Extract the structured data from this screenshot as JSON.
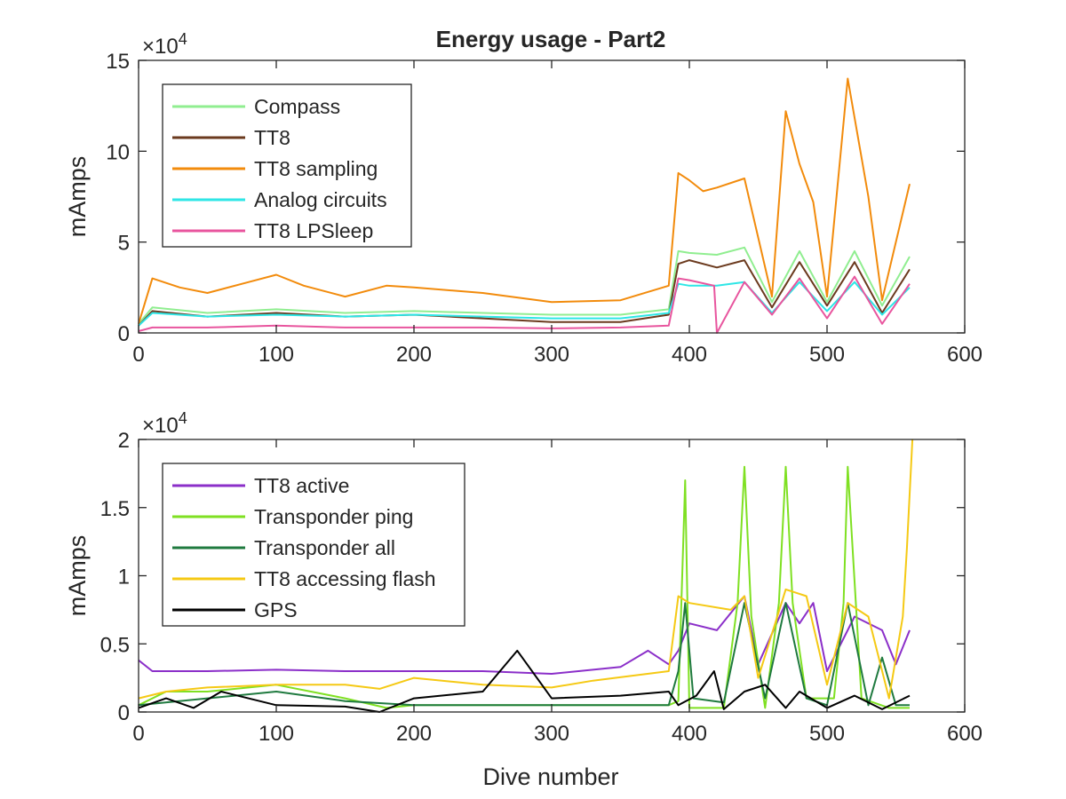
{
  "figure_title": "Energy usage - Part2",
  "xlabel": "Dive number",
  "chart_data": [
    {
      "type": "line",
      "title": "Energy usage - Part2",
      "xlabel": "",
      "ylabel": "mAmps",
      "xlim": [
        0,
        600
      ],
      "ylim": [
        0,
        150000
      ],
      "x_ticks": [
        0,
        100,
        200,
        300,
        400,
        500,
        600
      ],
      "x_tick_labels": [
        "0",
        "100",
        "200",
        "300",
        "400",
        "500",
        "600"
      ],
      "y_ticks": [
        0,
        50000,
        100000,
        150000
      ],
      "y_tick_labels": [
        "0",
        "5",
        "10",
        "15"
      ],
      "y_exponent": "×10",
      "y_exponent_power": "4",
      "grid": false,
      "legend_position": "top-left",
      "series": [
        {
          "name": "Compass",
          "color": "#90EE90",
          "x": [
            0,
            10,
            50,
            100,
            150,
            200,
            250,
            300,
            350,
            385,
            392,
            400,
            420,
            440,
            460,
            480,
            500,
            520,
            540,
            560
          ],
          "y": [
            5000,
            14000,
            11000,
            13000,
            11000,
            12000,
            11000,
            10000,
            10000,
            13000,
            45000,
            44000,
            43000,
            47000,
            17000,
            45000,
            17000,
            45000,
            15000,
            42000
          ]
        },
        {
          "name": "TT8",
          "color": "#6B3A1E",
          "x": [
            0,
            10,
            50,
            100,
            150,
            200,
            250,
            300,
            350,
            385,
            392,
            400,
            420,
            440,
            460,
            480,
            500,
            520,
            540,
            560
          ],
          "y": [
            4000,
            12000,
            9000,
            11000,
            9000,
            10000,
            8000,
            6000,
            6000,
            10000,
            38000,
            40000,
            36000,
            40000,
            14000,
            39000,
            15000,
            39000,
            11000,
            35000
          ]
        },
        {
          "name": "TT8 sampling",
          "color": "#F28B0C",
          "x": [
            0,
            10,
            30,
            50,
            80,
            100,
            120,
            150,
            180,
            200,
            250,
            300,
            350,
            385,
            392,
            400,
            410,
            420,
            440,
            460,
            470,
            480,
            490,
            500,
            515,
            530,
            540,
            560
          ],
          "y": [
            5000,
            30000,
            25000,
            22000,
            28000,
            32000,
            26000,
            20000,
            26000,
            25000,
            22000,
            17000,
            18000,
            26000,
            88000,
            84000,
            78000,
            80000,
            85000,
            20000,
            122000,
            93000,
            72000,
            20000,
            140000,
            75000,
            18000,
            82000
          ]
        },
        {
          "name": "Analog circuits",
          "color": "#2EE6E6",
          "x": [
            0,
            10,
            50,
            100,
            150,
            200,
            250,
            300,
            350,
            385,
            392,
            400,
            420,
            440,
            460,
            480,
            500,
            520,
            540,
            560
          ],
          "y": [
            4000,
            11000,
            9000,
            10000,
            9000,
            10000,
            9000,
            8000,
            8000,
            11000,
            27000,
            26000,
            26000,
            28000,
            11000,
            28000,
            12000,
            28000,
            10000,
            25000
          ]
        },
        {
          "name": "TT8 LPSleep",
          "color": "#E8559E",
          "x": [
            0,
            10,
            50,
            100,
            150,
            200,
            250,
            300,
            350,
            385,
            392,
            400,
            418,
            420,
            440,
            460,
            480,
            500,
            520,
            540,
            560
          ],
          "y": [
            1000,
            3000,
            3000,
            4000,
            3000,
            3000,
            3000,
            2500,
            3000,
            4000,
            30000,
            29000,
            26000,
            0,
            28000,
            10000,
            30000,
            8000,
            31000,
            5000,
            27000
          ]
        }
      ]
    },
    {
      "type": "line",
      "title": "",
      "xlabel": "Dive number",
      "ylabel": "mAmps",
      "xlim": [
        0,
        600
      ],
      "ylim": [
        0,
        20000
      ],
      "x_ticks": [
        0,
        100,
        200,
        300,
        400,
        500,
        600
      ],
      "x_tick_labels": [
        "0",
        "100",
        "200",
        "300",
        "400",
        "500",
        "600"
      ],
      "y_ticks": [
        0,
        5000,
        10000,
        15000,
        20000
      ],
      "y_tick_labels": [
        "0",
        "0.5",
        "1",
        "1.5",
        "2"
      ],
      "y_exponent": "×10",
      "y_exponent_power": "4",
      "grid": false,
      "legend_position": "top-left",
      "series": [
        {
          "name": "TT8 active",
          "color": "#8B2FC9",
          "x": [
            0,
            10,
            50,
            100,
            150,
            200,
            250,
            300,
            350,
            370,
            385,
            392,
            400,
            420,
            440,
            450,
            470,
            480,
            490,
            500,
            520,
            540,
            550,
            560
          ],
          "y": [
            3800,
            3000,
            3000,
            3100,
            3000,
            3000,
            3000,
            2800,
            3300,
            4500,
            3500,
            4500,
            6500,
            6000,
            8500,
            3500,
            8000,
            6500,
            8000,
            3000,
            7000,
            6000,
            3500,
            6000
          ]
        },
        {
          "name": "Transponder ping",
          "color": "#7FE022",
          "x": [
            0,
            20,
            50,
            100,
            150,
            180,
            200,
            300,
            385,
            392,
            397,
            400,
            415,
            425,
            435,
            440,
            445,
            455,
            465,
            470,
            475,
            485,
            505,
            512,
            515,
            525,
            545,
            555,
            560
          ],
          "y": [
            500,
            1500,
            1500,
            2000,
            1000,
            300,
            500,
            500,
            500,
            800,
            17000,
            300,
            300,
            300,
            8000,
            18000,
            7000,
            300,
            8000,
            18000,
            8000,
            1000,
            1000,
            8000,
            18000,
            1000,
            300,
            300,
            300
          ]
        },
        {
          "name": "Transponder all",
          "color": "#1F7A3F",
          "x": [
            0,
            50,
            100,
            150,
            200,
            300,
            385,
            392,
            397,
            403,
            425,
            440,
            455,
            470,
            485,
            500,
            515,
            530,
            540,
            550,
            560
          ],
          "y": [
            500,
            1000,
            1500,
            800,
            500,
            500,
            500,
            3000,
            8000,
            1000,
            700,
            8000,
            1000,
            8000,
            1000,
            500,
            8000,
            500,
            4000,
            500,
            500
          ]
        },
        {
          "name": "TT8 accessing flash",
          "color": "#F5C914",
          "x": [
            0,
            20,
            50,
            100,
            150,
            175,
            200,
            250,
            300,
            330,
            385,
            392,
            400,
            430,
            440,
            450,
            470,
            485,
            500,
            515,
            530,
            545,
            555,
            558,
            562
          ],
          "y": [
            1000,
            1500,
            1800,
            2000,
            2000,
            1700,
            2500,
            2000,
            1800,
            2300,
            3000,
            8500,
            8000,
            7500,
            8500,
            2500,
            9000,
            8500,
            2000,
            8000,
            7000,
            1000,
            7000,
            12000,
            20000
          ]
        },
        {
          "name": "GPS",
          "color": "#000000",
          "x": [
            0,
            20,
            40,
            60,
            100,
            150,
            175,
            200,
            250,
            275,
            300,
            350,
            385,
            392,
            405,
            418,
            425,
            440,
            455,
            470,
            480,
            500,
            520,
            540,
            560
          ],
          "y": [
            300,
            1000,
            300,
            1500,
            500,
            400,
            0,
            1000,
            1500,
            4500,
            1000,
            1200,
            1500,
            500,
            1200,
            3000,
            200,
            1500,
            2000,
            300,
            1500,
            300,
            1200,
            200,
            1200
          ]
        }
      ]
    }
  ]
}
